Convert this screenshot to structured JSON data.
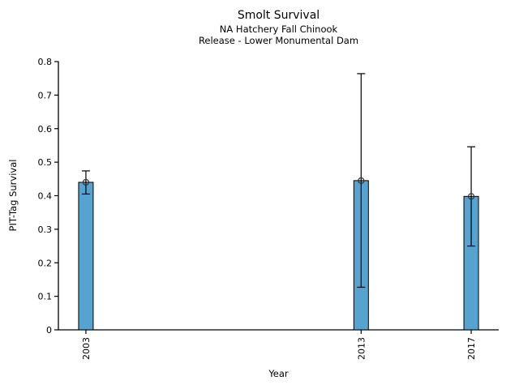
{
  "chart_data": {
    "type": "bar",
    "title": "Smolt Survival",
    "subtitle_lines": [
      "NA Hatchery Fall Chinook",
      "Release - Lower Monumental Dam"
    ],
    "xlabel": "Year",
    "ylabel": "PIT-Tag Survival",
    "categories": [
      "2003",
      "2013",
      "2017"
    ],
    "x_years": [
      2003,
      2013,
      2017
    ],
    "values": [
      0.44,
      0.445,
      0.398
    ],
    "error_low": [
      0.405,
      0.127,
      0.25
    ],
    "error_high": [
      0.474,
      0.764,
      0.546
    ],
    "xlim": [
      2002,
      2018
    ],
    "ylim": [
      0,
      0.8
    ],
    "yticks": {
      "values": [
        0,
        0.1,
        0.2,
        0.3,
        0.4,
        0.5,
        0.6,
        0.7,
        0.8
      ],
      "labels": [
        "0",
        "0.1",
        "0.2",
        "0.3",
        "0.4",
        "0.5",
        "0.6",
        "0.7",
        "0.8"
      ]
    },
    "grid": false,
    "legend": "none",
    "marker": "open-circle",
    "colors": {
      "bar_fill": "#57a3cf",
      "bar_edge": "#000000",
      "error_bar": "#000000",
      "marker_edge": "#333333",
      "axis": "#000000",
      "text": "#000000",
      "background": "#ffffff"
    }
  }
}
